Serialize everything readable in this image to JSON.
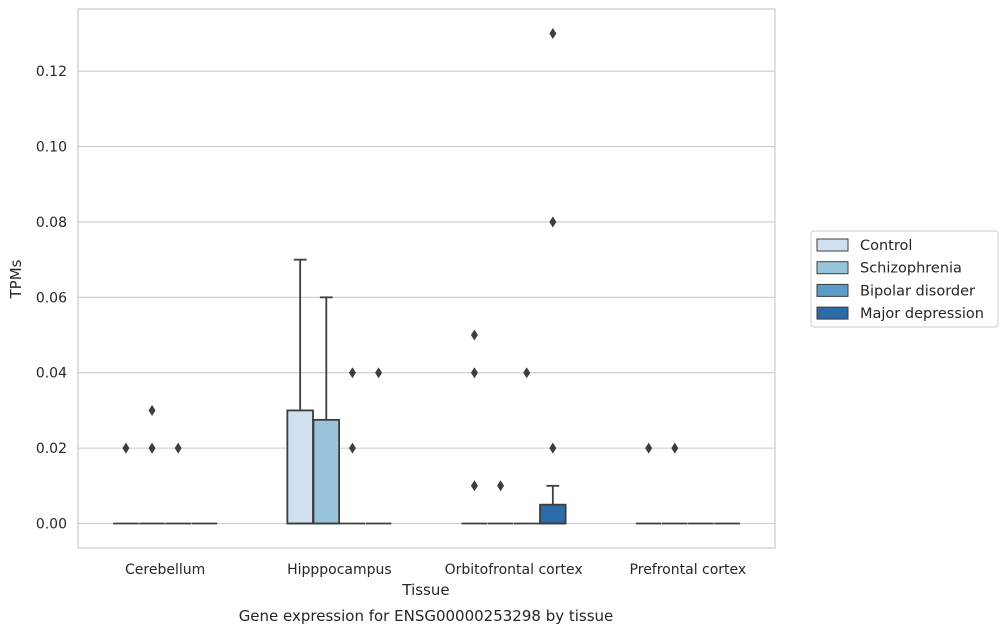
{
  "chart_data": {
    "type": "box",
    "caption": "Gene expression for ENSG00000253298 by tissue",
    "xlabel": "Tissue",
    "ylabel": "TPMs",
    "ylim": [
      -0.0065,
      0.1365
    ],
    "yticks": [
      0.0,
      0.02,
      0.04,
      0.06,
      0.08,
      0.1,
      0.12
    ],
    "ytick_labels": [
      "0.00",
      "0.02",
      "0.04",
      "0.06",
      "0.08",
      "0.10",
      "0.12"
    ],
    "grid": "horizontal",
    "legend_position": "right",
    "categories": [
      "Cerebellum",
      "Hipppocampus",
      "Orbitofrontal cortex",
      "Prefrontal cortex"
    ],
    "series": [
      {
        "name": "Control",
        "color": "#cfe0f0",
        "boxes": [
          {
            "q1": 0,
            "median": 0,
            "q3": 0,
            "whisker_low": 0,
            "whisker_high": 0,
            "outliers": [
              0.02
            ]
          },
          {
            "q1": 0,
            "median": 0,
            "q3": 0.03,
            "whisker_low": 0,
            "whisker_high": 0.07,
            "outliers": []
          },
          {
            "q1": 0,
            "median": 0,
            "q3": 0,
            "whisker_low": 0,
            "whisker_high": 0,
            "outliers": [
              0.05,
              0.04,
              0.01
            ]
          },
          {
            "q1": 0,
            "median": 0,
            "q3": 0,
            "whisker_low": 0,
            "whisker_high": 0,
            "outliers": [
              0.02
            ]
          }
        ]
      },
      {
        "name": "Schizophrenia",
        "color": "#9ac3dc",
        "boxes": [
          {
            "q1": 0,
            "median": 0,
            "q3": 0,
            "whisker_low": 0,
            "whisker_high": 0,
            "outliers": [
              0.03,
              0.02
            ]
          },
          {
            "q1": 0,
            "median": 0,
            "q3": 0.0275,
            "whisker_low": 0,
            "whisker_high": 0.06,
            "outliers": []
          },
          {
            "q1": 0,
            "median": 0,
            "q3": 0,
            "whisker_low": 0,
            "whisker_high": 0,
            "outliers": [
              0.01
            ]
          },
          {
            "q1": 0,
            "median": 0,
            "q3": 0,
            "whisker_low": 0,
            "whisker_high": 0,
            "outliers": [
              0.02
            ]
          }
        ]
      },
      {
        "name": "Bipolar disorder",
        "color": "#5a9bc8",
        "boxes": [
          {
            "q1": 0,
            "median": 0,
            "q3": 0,
            "whisker_low": 0,
            "whisker_high": 0,
            "outliers": [
              0.02
            ]
          },
          {
            "q1": 0,
            "median": 0,
            "q3": 0,
            "whisker_low": 0,
            "whisker_high": 0,
            "outliers": [
              0.04,
              0.02
            ]
          },
          {
            "q1": 0,
            "median": 0,
            "q3": 0,
            "whisker_low": 0,
            "whisker_high": 0,
            "outliers": [
              0.04
            ]
          },
          {
            "q1": 0,
            "median": 0,
            "q3": 0,
            "whisker_low": 0,
            "whisker_high": 0,
            "outliers": []
          }
        ]
      },
      {
        "name": "Major depression",
        "color": "#2b6ba8",
        "boxes": [
          {
            "q1": 0,
            "median": 0,
            "q3": 0,
            "whisker_low": 0,
            "whisker_high": 0,
            "outliers": []
          },
          {
            "q1": 0,
            "median": 0,
            "q3": 0,
            "whisker_low": 0,
            "whisker_high": 0,
            "outliers": [
              0.04
            ]
          },
          {
            "q1": 0,
            "median": 0,
            "q3": 0.005,
            "whisker_low": 0,
            "whisker_high": 0.01,
            "outliers": [
              0.13,
              0.08,
              0.02
            ]
          },
          {
            "q1": 0,
            "median": 0,
            "q3": 0,
            "whisker_low": 0,
            "whisker_high": 0,
            "outliers": []
          }
        ]
      }
    ]
  }
}
